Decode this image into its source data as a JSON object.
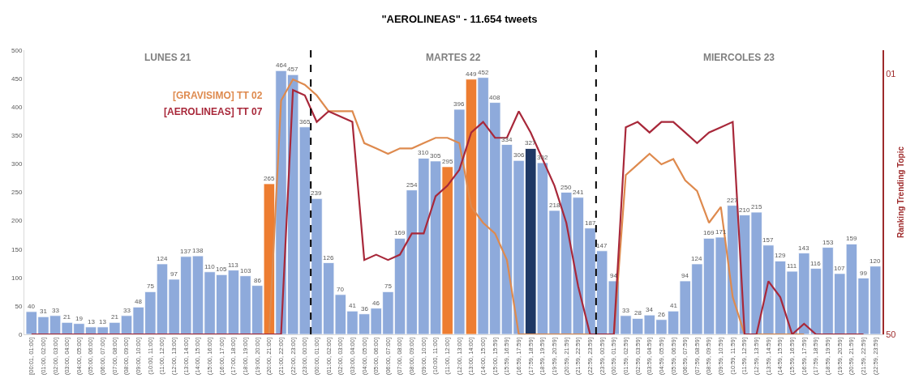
{
  "chart_data": {
    "type": "bar",
    "title": "\"AEROLINEAS\" - 11.654 tweets",
    "y2label": "Ranking Trending Topic",
    "categories": [
      "[00:01, 01:00]",
      "(01:00, 02:00]",
      "(02:00, 03:00]",
      "(03:00, 04:00]",
      "(04:00, 05:00]",
      "(05:00, 06:00]",
      "(06:00, 07:00]",
      "(07:00, 08:00]",
      "(08:00, 09:00]",
      "(09:00, 10:00]",
      "(10:00, 11:00]",
      "(11:00, 12:00]",
      "(12:00, 13:00]",
      "(13:00, 14:00]",
      "(14:00, 15:00]",
      "(15:00, 16:00]",
      "(16:00, 17:00]",
      "(17:00, 18:00]",
      "(18:00, 19:00]",
      "(19:00, 20:00]",
      "(20:00, 21:00]",
      "(21:00, 22:00]",
      "(22:00, 23:00]",
      "(23:00, 00:00]",
      "(00:00, 01:00]",
      "(01:00, 02:00]",
      "(02:00, 03:00]",
      "(03:00, 04:00]",
      "(04:00, 05:00]",
      "(05:00, 06:00]",
      "(06:00, 07:00]",
      "(07:00, 08:00]",
      "(08:00, 09:00]",
      "(09:00, 10:00]",
      "(10:00, 11:00]",
      "(11:00, 12:00]",
      "(12:00, 13:00]",
      "(13:00, 14:00]",
      "(14:00, 15:00]",
      "(15:00, 15:59]",
      "(15:59, 16:59]",
      "(16:59, 17:59]",
      "(17:59, 18:59]",
      "(18:59, 19:59]",
      "(19:59, 20:59]",
      "(20:59, 21:59]",
      "(21:59, 22:59]",
      "(22:59, 23:59]",
      "(23:59, 00:59]",
      "(00:59, 01:59]",
      "(01:59, 02:59]",
      "(02:59, 03:59]",
      "(03:59, 04:59]",
      "(04:59, 05:59]",
      "(05:59, 06:59]",
      "(06:59, 07:59]",
      "(07:59, 08:59]",
      "(08:59, 09:59]",
      "(09:59, 10:59]",
      "(10:59, 11:59]",
      "(11:59, 12:59]",
      "(12:59, 13:59]",
      "(13:59, 14:59]",
      "(14:59, 15:59]",
      "(15:59, 16:59]",
      "(16:59, 17:59]",
      "(17:59, 18:59]",
      "(18:59, 19:59]",
      "(19:59, 20:59]",
      "(20:59, 21:59]",
      "(21:59, 22:59]",
      "(22:59, 23:59]"
    ],
    "ylim": [
      0,
      500
    ],
    "yticks": [
      0,
      50,
      100,
      150,
      200,
      250,
      300,
      350,
      400,
      450,
      500
    ],
    "y2lim": [
      50,
      -3.5
    ],
    "y2ticks": [
      {
        "value": 1,
        "label": "01"
      },
      {
        "value": 50,
        "label": "50"
      }
    ],
    "legend": false,
    "annotations": [
      "LUNES 21",
      "MARTES 22",
      "MIERCOLES 23"
    ],
    "series": [
      {
        "values": [
          40,
          31,
          33,
          21,
          19,
          13,
          13,
          21,
          33,
          48,
          75,
          124,
          97,
          137,
          138,
          110,
          105,
          113,
          103,
          86,
          265,
          464,
          457,
          365,
          239,
          126,
          70,
          41,
          36,
          46,
          75,
          169,
          254,
          310,
          305,
          295,
          396,
          449,
          452,
          408,
          334,
          306,
          327,
          302,
          218,
          250,
          241,
          187,
          147,
          94,
          33,
          28,
          34,
          26,
          41,
          94,
          124,
          169,
          171,
          227,
          210,
          215,
          157,
          129,
          111,
          143,
          116,
          153,
          107,
          159,
          99,
          120
        ],
        "value_labels": [
          "40",
          "31",
          "33",
          "21",
          "19",
          "13",
          "13",
          "21",
          "33",
          "48",
          "75",
          "124",
          "97",
          "137",
          "138",
          "110",
          "105",
          "113",
          "103",
          "86",
          "265",
          "464",
          "457",
          "365",
          "239",
          "126",
          "70",
          "41",
          "36",
          "46",
          "75",
          "169",
          "254",
          "310",
          "305",
          "295",
          "396",
          "449",
          "452",
          "408",
          "334",
          "306",
          "327",
          "302",
          "218",
          "250",
          "241",
          "187",
          "147",
          "94",
          "33",
          "28",
          "34",
          "26",
          "41",
          "94",
          "124",
          "169",
          "171",
          "227",
          "210",
          "215",
          "157",
          "129",
          "111",
          "143",
          "116",
          "153",
          "107",
          "159",
          "99",
          "120"
        ],
        "colors": [
          "#8eaadb",
          "#8eaadb",
          "#8eaadb",
          "#8eaadb",
          "#8eaadb",
          "#8eaadb",
          "#8eaadb",
          "#8eaadb",
          "#8eaadb",
          "#8eaadb",
          "#8eaadb",
          "#8eaadb",
          "#8eaadb",
          "#8eaadb",
          "#8eaadb",
          "#8eaadb",
          "#8eaadb",
          "#8eaadb",
          "#8eaadb",
          "#8eaadb",
          "#ed7d31",
          "#8eaadb",
          "#8eaadb",
          "#8eaadb",
          "#8eaadb",
          "#8eaadb",
          "#8eaadb",
          "#8eaadb",
          "#8eaadb",
          "#8eaadb",
          "#8eaadb",
          "#8eaadb",
          "#8eaadb",
          "#8eaadb",
          "#8eaadb",
          "#ed7d31",
          "#8eaadb",
          "#ed7d31",
          "#8eaadb",
          "#8eaadb",
          "#8eaadb",
          "#8eaadb",
          "#1f3864",
          "#8eaadb",
          "#8eaadb",
          "#8eaadb",
          "#8eaadb",
          "#8eaadb",
          "#8eaadb",
          "#8eaadb",
          "#8eaadb",
          "#8eaadb",
          "#8eaadb",
          "#8eaadb",
          "#8eaadb",
          "#8eaadb",
          "#8eaadb",
          "#8eaadb",
          "#8eaadb",
          "#8eaadb",
          "#8eaadb",
          "#8eaadb",
          "#8eaadb",
          "#8eaadb",
          "#8eaadb",
          "#8eaadb",
          "#8eaadb",
          "#8eaadb",
          "#8eaadb",
          "#8eaadb",
          "#8eaadb",
          "#8eaadb"
        ]
      },
      {
        "type": "line",
        "name": "[GRAVISIMO] TT 02",
        "color": "#de8a4e",
        "axis": "y2",
        "marker": "none",
        "line_style": "solid",
        "values": [
          null,
          null,
          null,
          null,
          null,
          null,
          null,
          null,
          null,
          null,
          null,
          null,
          null,
          null,
          null,
          null,
          null,
          null,
          null,
          null,
          50,
          6,
          2,
          3,
          5,
          8,
          8,
          8,
          14,
          15,
          16,
          15,
          15,
          14,
          13,
          13,
          14,
          26,
          29,
          31,
          36,
          50,
          50,
          50,
          50,
          50,
          50,
          50,
          null,
          50,
          20,
          18,
          16,
          18,
          17,
          21,
          23,
          29,
          26,
          43,
          50,
          50,
          50,
          50,
          50,
          50,
          null,
          null,
          null,
          null,
          null,
          null
        ]
      },
      {
        "type": "line",
        "name": "[AEROLINEAS] TT 07",
        "color": "#a8283a",
        "axis": "y2",
        "marker": "none",
        "line_style": "solid",
        "values": [
          50,
          50,
          50,
          50,
          50,
          50,
          50,
          50,
          50,
          50,
          50,
          50,
          50,
          50,
          50,
          50,
          50,
          50,
          50,
          50,
          50,
          50,
          4,
          5,
          10,
          8,
          9,
          10,
          36,
          35,
          36,
          35,
          31,
          31,
          24,
          22,
          19,
          12,
          10,
          13,
          13,
          8,
          12,
          17,
          22,
          29,
          41,
          50,
          50,
          50,
          11,
          10,
          12,
          10,
          10,
          12,
          14,
          12,
          11,
          10,
          50,
          50,
          40,
          43,
          50,
          48,
          50,
          50,
          50,
          50,
          50,
          null
        ]
      }
    ]
  }
}
